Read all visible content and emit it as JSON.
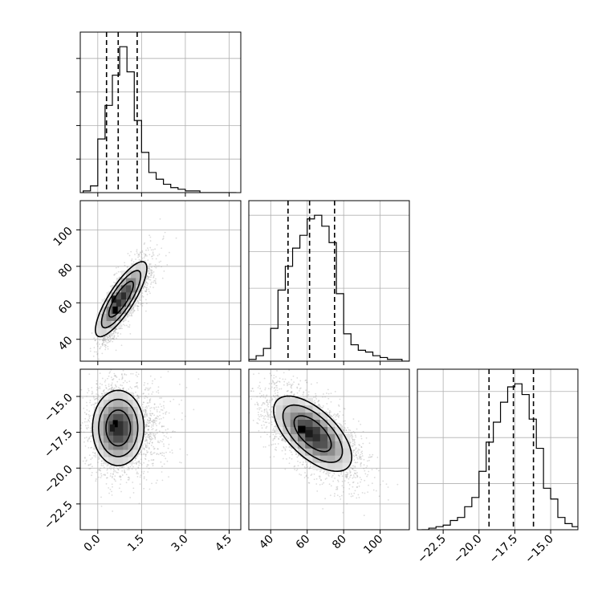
{
  "chart_data": {
    "type": "corner",
    "grid": true,
    "parameters": [
      {
        "range": [
          -0.6,
          4.9
        ],
        "ticks": [
          0.0,
          1.5,
          3.0,
          4.5
        ],
        "tick_labels": [
          "0.0",
          "1.5",
          "3.0",
          "4.5"
        ]
      },
      {
        "range": [
          28,
          116
        ],
        "ticks": [
          40,
          60,
          80,
          100
        ],
        "tick_labels": [
          "40",
          "60",
          "80",
          "100"
        ]
      },
      {
        "range": [
          -24.3,
          -13.1
        ],
        "ticks": [
          -22.5,
          -20.0,
          -17.5,
          -15.0
        ],
        "tick_labels": [
          "−22.5",
          "−20.0",
          "−17.5",
          "−15.0"
        ]
      }
    ],
    "quantiles": [
      [
        0.3,
        0.7,
        1.35
      ],
      [
        49.5,
        61.3,
        75
      ],
      [
        -19.3,
        -17.6,
        -16.2
      ]
    ],
    "histograms": [
      {
        "bin_edges": [
          -0.5,
          -0.25,
          0.0,
          0.25,
          0.5,
          0.75,
          1.0,
          1.25,
          1.5,
          1.75,
          2.0,
          2.25,
          2.5,
          2.75,
          3.0,
          3.25,
          3.5,
          3.75,
          4.0,
          4.25,
          4.5,
          4.75
        ],
        "counts": [
          1,
          4,
          32,
          52,
          70,
          87,
          72,
          43,
          24,
          12,
          8,
          5,
          3,
          2,
          1,
          1,
          0,
          0,
          0,
          0,
          0
        ]
      },
      {
        "bin_edges": [
          28,
          32,
          36,
          40,
          44,
          48,
          52,
          56,
          60,
          64,
          68,
          72,
          76,
          80,
          84,
          88,
          92,
          96,
          100,
          104,
          108,
          112,
          116
        ],
        "counts": [
          1,
          3,
          7,
          18,
          39,
          52,
          62,
          69,
          78,
          80,
          74,
          65,
          37,
          15,
          9,
          6,
          5,
          3,
          2,
          1,
          1,
          0
        ]
      },
      {
        "bin_edges": [
          -24.0,
          -23.5,
          -23.0,
          -22.5,
          -22.0,
          -21.5,
          -21.0,
          -20.5,
          -20.0,
          -19.5,
          -19.0,
          -18.5,
          -18.0,
          -17.5,
          -17.0,
          -16.5,
          -16.0,
          -15.5,
          -15.0,
          -14.5,
          -14.0,
          -13.5,
          -13.0
        ],
        "counts": [
          0,
          1,
          2,
          3,
          6,
          8,
          15,
          21,
          38,
          57,
          70,
          83,
          93,
          95,
          88,
          72,
          53,
          27,
          20,
          8,
          4,
          2
        ]
      }
    ],
    "pairs": [
      {
        "x_param": 0,
        "y_param": 1,
        "mean": [
          0.8,
          62
        ],
        "std": [
          0.42,
          9.8
        ],
        "corr": 0.82,
        "scatter_spread": [
          1.1,
          1.1
        ]
      },
      {
        "x_param": 0,
        "y_param": 2,
        "mean": [
          0.7,
          -17.2
        ],
        "std": [
          0.42,
          1.25
        ],
        "corr": 0.0,
        "scatter_spread": [
          1.7,
          1.3
        ]
      },
      {
        "x_param": 1,
        "y_param": 2,
        "mean": [
          63,
          -17.6
        ],
        "std": [
          10.2,
          1.25
        ],
        "corr": -0.62,
        "scatter_spread": [
          1.3,
          1.3
        ]
      }
    ],
    "contour_levels_sigma": [
      1.0,
      1.6,
      2.1
    ],
    "density_peaks": [
      [
        [
          0.6,
          56
        ],
        [
          0.55,
          62
        ]
      ],
      [
        [
          0.6,
          -16.9
        ],
        [
          0.5,
          -17.2
        ]
      ],
      [
        [
          57,
          -17.3
        ],
        [
          61,
          -17.6
        ]
      ]
    ]
  }
}
